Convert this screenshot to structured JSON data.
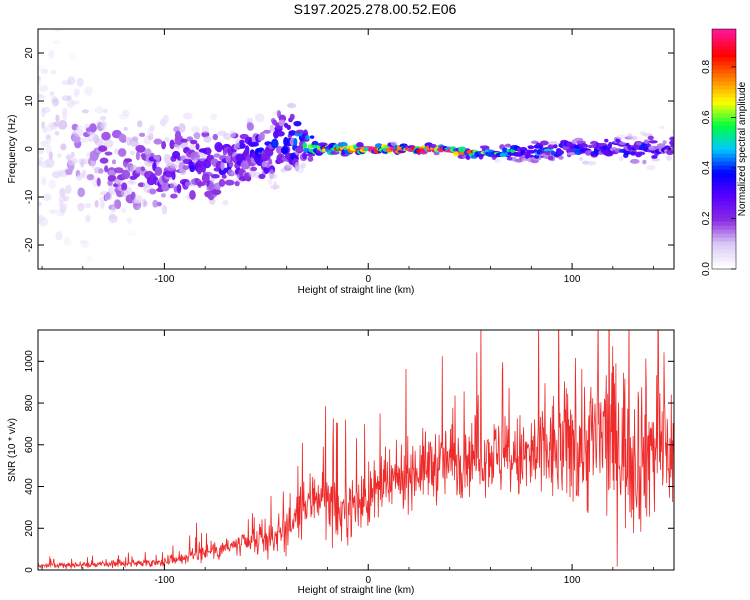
{
  "title": "S197.2025.278.00.52.E06",
  "colors": {
    "snr_line": "#ee2a2a",
    "background": "#ffffff",
    "axis": "#000000"
  },
  "chart_data": [
    {
      "type": "heatmap",
      "name": "spectrogram",
      "xlabel": "Height of straight line (km)",
      "ylabel": "Frequency (Hz)",
      "xlim": [
        -162,
        150
      ],
      "ylim": [
        -25,
        25
      ],
      "x_ticks": [
        -100,
        0,
        100
      ],
      "x_tick_labels": [
        "-100",
        "0",
        "100"
      ],
      "y_ticks": [
        -20,
        -10,
        0,
        10,
        20
      ],
      "y_tick_labels": [
        "-20",
        "-10",
        "0",
        "10",
        "20"
      ],
      "colorbar": {
        "label": "Normalized spectral amplitude",
        "range": [
          0.0,
          0.95
        ],
        "ticks": [
          0.0,
          0.2,
          0.4,
          0.6,
          0.8
        ],
        "tick_labels": [
          "0.0",
          "0.2",
          "0.4",
          "0.6",
          "0.8"
        ],
        "colormap": [
          "#ffffff",
          "#d9c8f5",
          "#8a2be2",
          "#5a00ff",
          "#0000ff",
          "#00c8ff",
          "#00ff40",
          "#ffff00",
          "#ff8000",
          "#ff0000",
          "#ff1493"
        ]
      },
      "ridge": {
        "description_free": true,
        "points": [
          {
            "x": -162,
            "f_center": 2,
            "f_spread": 22,
            "amp": 0.08
          },
          {
            "x": -120,
            "f_center": -4,
            "f_spread": 10,
            "amp": 0.18
          },
          {
            "x": -90,
            "f_center": -4,
            "f_spread": 8,
            "amp": 0.25
          },
          {
            "x": -60,
            "f_center": -2,
            "f_spread": 6,
            "amp": 0.3
          },
          {
            "x": -35,
            "f_center": 2,
            "f_spread": 6,
            "amp": 0.35
          },
          {
            "x": -25,
            "f_center": 0,
            "f_spread": 1.2,
            "amp": 0.6
          },
          {
            "x": 0,
            "f_center": 0,
            "f_spread": 0.8,
            "amp": 0.85
          },
          {
            "x": 30,
            "f_center": 0,
            "f_spread": 0.8,
            "amp": 0.9
          },
          {
            "x": 60,
            "f_center": -1,
            "f_spread": 1.2,
            "amp": 0.5
          },
          {
            "x": 100,
            "f_center": 0,
            "f_spread": 2,
            "amp": 0.35
          },
          {
            "x": 150,
            "f_center": 0,
            "f_spread": 3,
            "amp": 0.3
          }
        ]
      }
    },
    {
      "type": "line",
      "name": "snr",
      "xlabel": "Height of straight line (km)",
      "ylabel": "SNR (10 * v/v)",
      "xlim": [
        -162,
        150
      ],
      "ylim": [
        0,
        1150
      ],
      "x_ticks": [
        -100,
        0,
        100
      ],
      "x_tick_labels": [
        "-100",
        "0",
        "100"
      ],
      "y_ticks": [
        0,
        200,
        400,
        600,
        800,
        1000
      ],
      "y_tick_labels": [
        "0",
        "200",
        "400",
        "600",
        "800",
        "1000"
      ],
      "series": [
        {
          "name": "SNR",
          "x": [
            -162,
            -140,
            -120,
            -100,
            -90,
            -80,
            -70,
            -60,
            -50,
            -40,
            -35,
            -30,
            -25,
            -20,
            -15,
            -10,
            -5,
            0,
            10,
            20,
            30,
            40,
            50,
            60,
            70,
            80,
            90,
            100,
            110,
            120,
            130,
            140,
            150
          ],
          "values": [
            20,
            25,
            30,
            40,
            60,
            90,
            110,
            120,
            140,
            200,
            250,
            300,
            380,
            330,
            260,
            300,
            320,
            350,
            400,
            470,
            500,
            520,
            550,
            560,
            520,
            540,
            570,
            600,
            620,
            650,
            560,
            600,
            580
          ],
          "noise": [
            10,
            12,
            14,
            18,
            25,
            40,
            45,
            50,
            60,
            90,
            100,
            110,
            140,
            130,
            120,
            120,
            120,
            130,
            120,
            130,
            140,
            160,
            150,
            150,
            160,
            200,
            220,
            250,
            300,
            320,
            330,
            300,
            250
          ]
        }
      ]
    }
  ]
}
